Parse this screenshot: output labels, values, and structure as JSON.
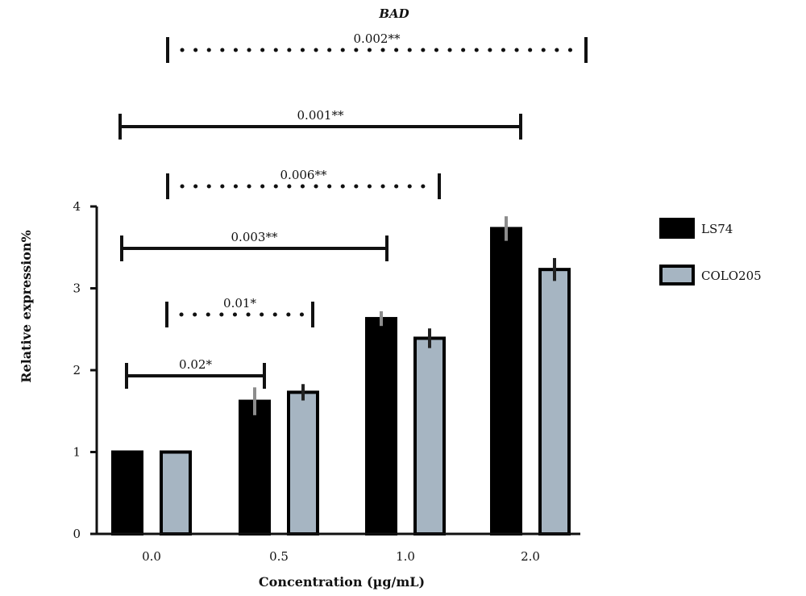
{
  "chart_data": {
    "type": "bar",
    "title": "BAD",
    "xlabel": "Concentration (µg/mL)",
    "ylabel": "Relative expression%",
    "categories": [
      "0.0",
      "0.5",
      "1.0",
      "2.0"
    ],
    "ylim": [
      0,
      4
    ],
    "yticks": [
      "0",
      "1",
      "2",
      "3",
      "4"
    ],
    "grid": false,
    "legend_position": "right",
    "series": [
      {
        "name": "LS74",
        "color": "#000000",
        "values": [
          1.0,
          1.62,
          2.63,
          3.73
        ],
        "errors": [
          0.0,
          0.17,
          0.09,
          0.15
        ],
        "error_color": "#8c8c8c"
      },
      {
        "name": "COLO205",
        "color": "#a6b5c2",
        "values": [
          1.0,
          1.73,
          2.39,
          3.23
        ],
        "errors": [
          0.0,
          0.1,
          0.12,
          0.14
        ],
        "error_color": "#222222"
      }
    ],
    "brackets": [
      {
        "label": "0.02*",
        "from": [
          "0.0",
          "LS74"
        ],
        "to": [
          "0.5",
          "LS74"
        ],
        "style": "solid"
      },
      {
        "label": "0.01*",
        "from": [
          "0.0",
          "COLO205"
        ],
        "to": [
          "0.5",
          "COLO205"
        ],
        "style": "dotted"
      },
      {
        "label": "0.003**",
        "from": [
          "0.0",
          "LS74"
        ],
        "to": [
          "1.0",
          "LS74"
        ],
        "style": "solid"
      },
      {
        "label": "0.006**",
        "from": [
          "0.0",
          "COLO205"
        ],
        "to": [
          "1.0",
          "COLO205"
        ],
        "style": "dotted"
      },
      {
        "label": "0.001**",
        "from": [
          "0.0",
          "LS74"
        ],
        "to": [
          "2.0",
          "LS74"
        ],
        "style": "solid"
      },
      {
        "label": "0.002**",
        "from": [
          "0.0",
          "COLO205"
        ],
        "to": [
          "2.0",
          "COLO205"
        ],
        "style": "dotted"
      }
    ]
  }
}
